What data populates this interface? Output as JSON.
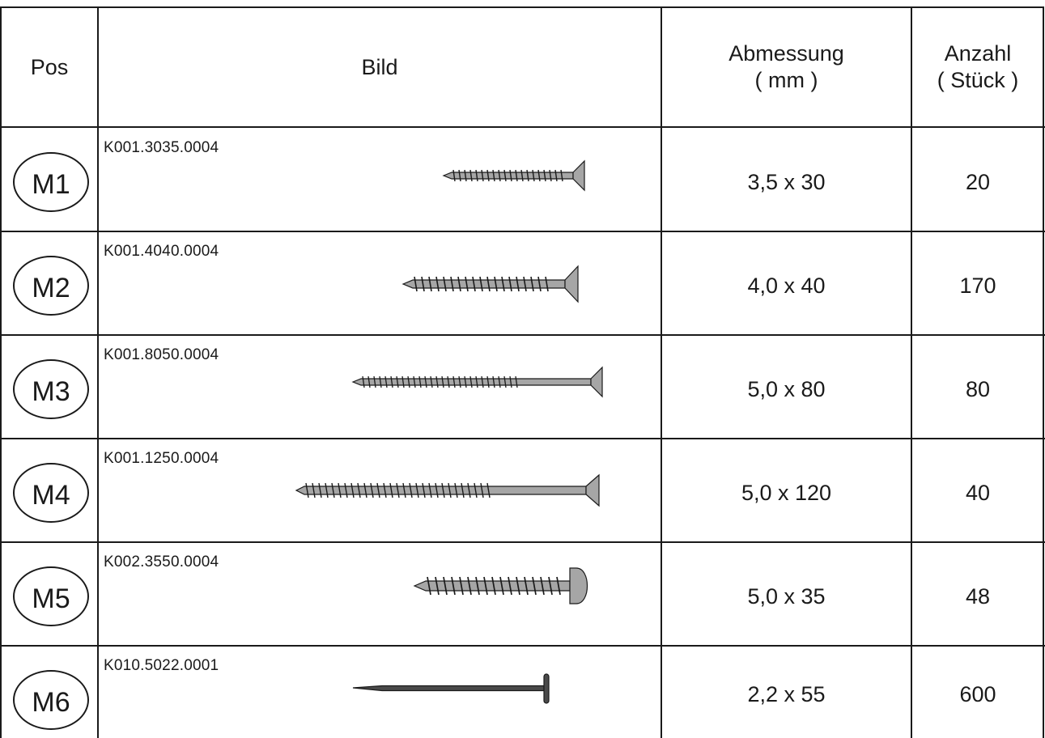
{
  "table": {
    "headers": {
      "pos": "Pos",
      "bild": "Bild",
      "abmessung": "Abmessung\n( mm )",
      "anzahl": "Anzahl\n( Stück )"
    },
    "rows": [
      {
        "pos": "M1",
        "code": "K001.3035.0004",
        "dimension": "3,5 x 30",
        "count": "20",
        "icon": "countersunk-screw-icon"
      },
      {
        "pos": "M2",
        "code": "K001.4040.0004",
        "dimension": "4,0 x 40",
        "count": "170",
        "icon": "countersunk-screw-icon"
      },
      {
        "pos": "M3",
        "code": "K001.8050.0004",
        "dimension": "5,0 x 80",
        "count": "80",
        "icon": "countersunk-screw-icon"
      },
      {
        "pos": "M4",
        "code": "K001.1250.0004",
        "dimension": "5,0 x 120",
        "count": "40",
        "icon": "countersunk-screw-icon"
      },
      {
        "pos": "M5",
        "code": "K002.3550.0004",
        "dimension": "5,0 x 35",
        "count": "48",
        "icon": "pan-head-screw-icon"
      },
      {
        "pos": "M6",
        "code": "K010.5022.0001",
        "dimension": "2,2 x 55",
        "count": "600",
        "icon": "nail-icon"
      }
    ]
  },
  "colors": {
    "line": "#1a1a1a",
    "screw_fill": "#a6a6a6",
    "nail_fill": "#4a4a4a"
  }
}
